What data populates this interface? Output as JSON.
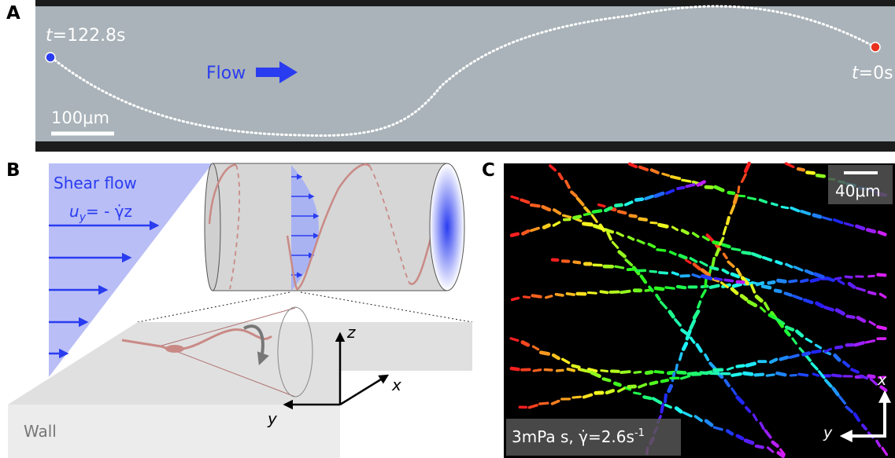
{
  "panel_a": {
    "label": "A",
    "time_start": {
      "symbol": "t",
      "rest": "=122.8s"
    },
    "flow": "Flow",
    "scale_bar": "100μm",
    "time_end": {
      "symbol": "t",
      "rest": "=0s"
    }
  },
  "panel_b": {
    "label": "B",
    "shear_flow": "Shear flow",
    "velocity": {
      "symbol": "u",
      "subscript": "y",
      "rest": "= - γ̇z"
    },
    "axes": {
      "z": "z",
      "x": "x",
      "y": "y"
    },
    "wall": "Wall"
  },
  "panel_c": {
    "label": "C",
    "scale_bar": "40μm",
    "condition": {
      "text": "3mPa s, γ̇=2.6s",
      "superscript": "-1"
    },
    "axes": {
      "x": "x",
      "y": "y"
    }
  }
}
